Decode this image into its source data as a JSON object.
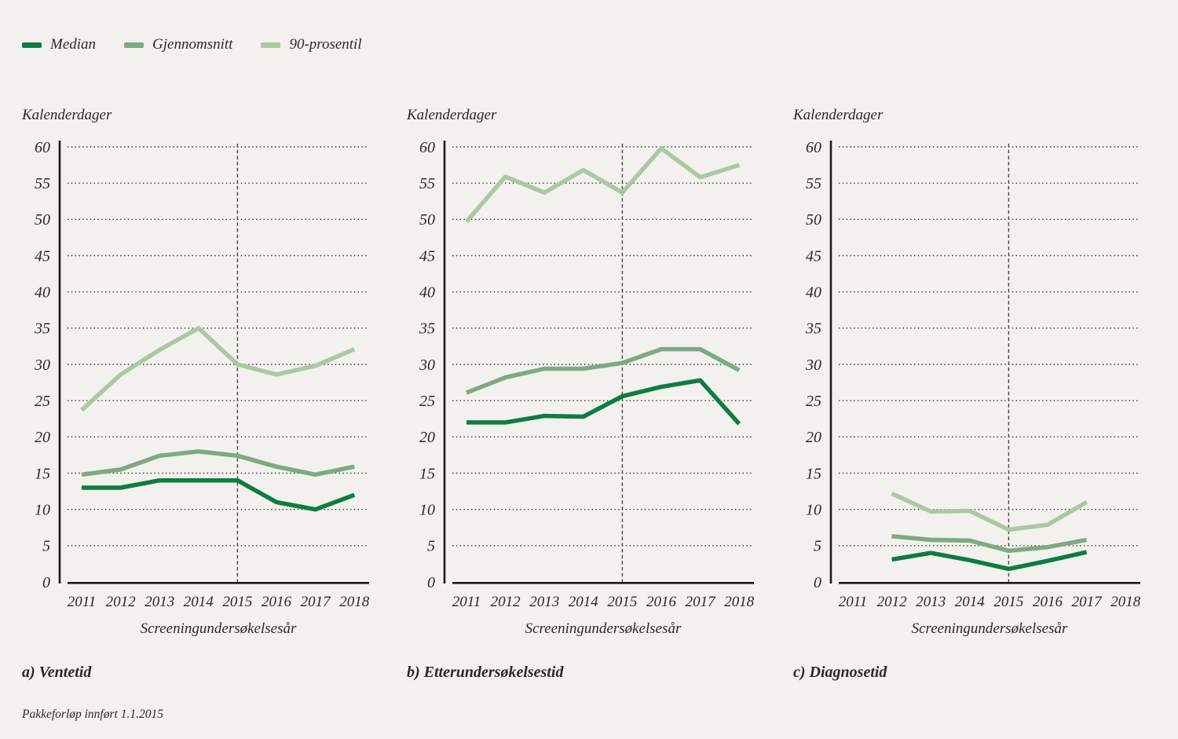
{
  "page": {
    "background_color": "#f2f1ed",
    "text_color": "#2a2925",
    "grid_color": "#2f2e2a",
    "axis_color": "#1c1b18"
  },
  "legend": {
    "items": [
      {
        "label": "Median",
        "color": "#0f7b44"
      },
      {
        "label": "Gjennomsnitt",
        "color": "#7ea981"
      },
      {
        "label": "90-prosentil",
        "color": "#aac9a3"
      }
    ]
  },
  "footnote": "Pakkeforløp innført 1.1.2015",
  "chart_data": [
    {
      "type": "line",
      "title": "a) Ventetid",
      "ylabel": "Kalenderdager",
      "xlabel": "Screeningundersøkelsesår",
      "categories": [
        "2011",
        "2012",
        "2013",
        "2014",
        "2015",
        "2016",
        "2017",
        "2018"
      ],
      "ylim": [
        0,
        60
      ],
      "ytick_step": 5,
      "grid": "horizontal-dotted",
      "reference_line": {
        "at": "2015",
        "style": "vertical-dashed"
      },
      "legend_position": "top-left-shared",
      "series": [
        {
          "name": "Median",
          "color": "#0f7b44",
          "values": [
            13,
            13,
            14,
            14,
            14,
            11,
            10,
            12
          ]
        },
        {
          "name": "Gjennomsnitt",
          "color": "#7ea981",
          "values": [
            14.8,
            15.5,
            17.4,
            18,
            17.4,
            15.9,
            14.8,
            15.9
          ]
        },
        {
          "name": "90-prosentil",
          "color": "#aac9a3",
          "values": [
            23.7,
            28.6,
            32,
            35,
            30,
            28.6,
            29.8,
            32.1
          ]
        }
      ]
    },
    {
      "type": "line",
      "title": "b) Etterundersøkelsestid",
      "ylabel": "Kalenderdager",
      "xlabel": "Screeningundersøkelsesår",
      "categories": [
        "2011",
        "2012",
        "2013",
        "2014",
        "2015",
        "2016",
        "2017",
        "2018"
      ],
      "ylim": [
        0,
        60
      ],
      "ytick_step": 5,
      "grid": "horizontal-dotted",
      "reference_line": {
        "at": "2015",
        "style": "vertical-dashed"
      },
      "legend_position": "top-left-shared",
      "series": [
        {
          "name": "Median",
          "color": "#0f7b44",
          "values": [
            22,
            22,
            22.9,
            22.8,
            25.6,
            26.9,
            27.8,
            21.8
          ]
        },
        {
          "name": "Gjennomsnitt",
          "color": "#7ea981",
          "values": [
            26.1,
            28.2,
            29.4,
            29.4,
            30.2,
            32.1,
            32.1,
            29.2
          ]
        },
        {
          "name": "90-prosentil",
          "color": "#aac9a3",
          "values": [
            49.7,
            55.9,
            53.7,
            56.8,
            53.7,
            59.8,
            55.8,
            57.5
          ]
        }
      ]
    },
    {
      "type": "line",
      "title": "c) Diagnosetid",
      "ylabel": "Kalenderdager",
      "xlabel": "Screeningundersøkelsesår",
      "categories": [
        "2011",
        "2012",
        "2013",
        "2014",
        "2015",
        "2016",
        "2017",
        "2018"
      ],
      "ylim": [
        0,
        60
      ],
      "ytick_step": 5,
      "grid": "horizontal-dotted",
      "reference_line": {
        "at": "2015",
        "style": "vertical-dashed"
      },
      "legend_position": "top-left-shared",
      "series": [
        {
          "name": "Median",
          "color": "#0f7b44",
          "values": [
            null,
            3.1,
            4,
            3,
            1.8,
            2.9,
            4.1,
            null
          ]
        },
        {
          "name": "Gjennomsnitt",
          "color": "#7ea981",
          "values": [
            null,
            6.3,
            5.8,
            5.7,
            4.3,
            4.8,
            5.8,
            null
          ]
        },
        {
          "name": "90-prosentil",
          "color": "#aac9a3",
          "values": [
            null,
            12.2,
            9.7,
            9.8,
            7.2,
            7.9,
            11,
            null
          ]
        }
      ]
    }
  ]
}
